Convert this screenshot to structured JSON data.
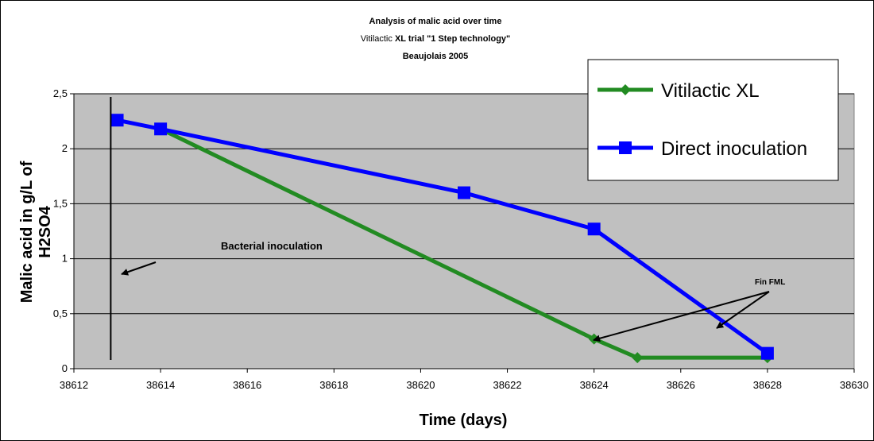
{
  "chart_data": {
    "type": "line",
    "title_line1": "Analysis of malic acid over time",
    "title_line2_pre": "Vitilactic ",
    "title_line2_bold": "XL trial \"1 Step technology\"",
    "title_line3": "Beaujolais 2005",
    "xlabel": "Time (days)",
    "ylabel_line1": "Malic acid in g/L of",
    "ylabel_line2": "H2SO4",
    "xlim": [
      38612,
      38630
    ],
    "ylim": [
      0,
      2.5
    ],
    "x_ticks": [
      38612,
      38614,
      38616,
      38618,
      38620,
      38622,
      38624,
      38626,
      38628,
      38630
    ],
    "x_tick_labels": [
      "38612",
      "38614",
      "38616",
      "38618",
      "38620",
      "38622",
      "38624",
      "38626",
      "38628",
      "38630"
    ],
    "y_ticks": [
      0,
      0.5,
      1,
      1.5,
      2,
      2.5
    ],
    "y_tick_labels": [
      "0",
      "0,5",
      "1",
      "1,5",
      "2",
      "2,5"
    ],
    "grid": "horizontal",
    "plot_background": "#c0c0c0",
    "legend_position": "top-right",
    "series": [
      {
        "name": "Vitilactic XL",
        "color": "#228B22",
        "marker": "diamond",
        "x": [
          38614,
          38624,
          38625,
          38628
        ],
        "y": [
          2.18,
          0.27,
          0.1,
          0.1
        ]
      },
      {
        "name": "Direct inoculation",
        "color": "#0000FF",
        "marker": "square",
        "x": [
          38613,
          38614,
          38621,
          38624,
          38628
        ],
        "y": [
          2.26,
          2.18,
          1.6,
          1.27,
          0.14
        ]
      }
    ],
    "annotations": {
      "inoculation_label": "Bacterial inoculation",
      "inoculation_line_x": 38612.85,
      "fin_fml_label": "Fin FML"
    }
  }
}
